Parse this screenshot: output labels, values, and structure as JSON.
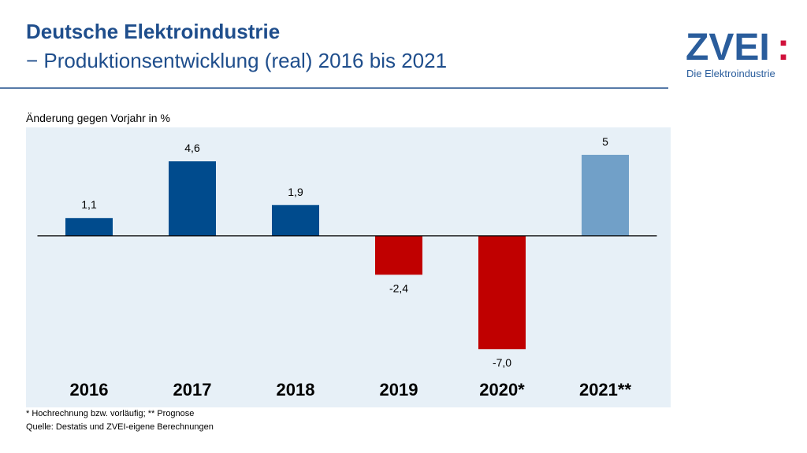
{
  "chart_data": {
    "type": "bar",
    "title": "Deutsche Elektroindustrie",
    "subtitle": "− Produktionsentwicklung (real) 2016 bis 2021",
    "y_label": "Änderung gegen Vorjahr in %",
    "categories": [
      "2016",
      "2017",
      "2018",
      "2019",
      "2020*",
      "2021**"
    ],
    "values": [
      1.1,
      4.6,
      1.9,
      -2.4,
      -7.0,
      5
    ],
    "value_labels": [
      "1,1",
      "4,6",
      "1,9",
      "-2,4",
      "-7,0",
      "5"
    ],
    "colors": [
      "#004b8d",
      "#004b8d",
      "#004b8d",
      "#c00000",
      "#c00000",
      "#71a0c8"
    ],
    "ylim": [
      -8.5,
      6.5
    ],
    "notes": [
      "* Hochrechnung bzw. vorläufig; ** Prognose",
      "Quelle: Destatis und ZVEI-eigene Berechnungen"
    ]
  },
  "logo": {
    "name": "ZVEI",
    "mark": ":",
    "tagline": "Die Elektroindustrie"
  }
}
